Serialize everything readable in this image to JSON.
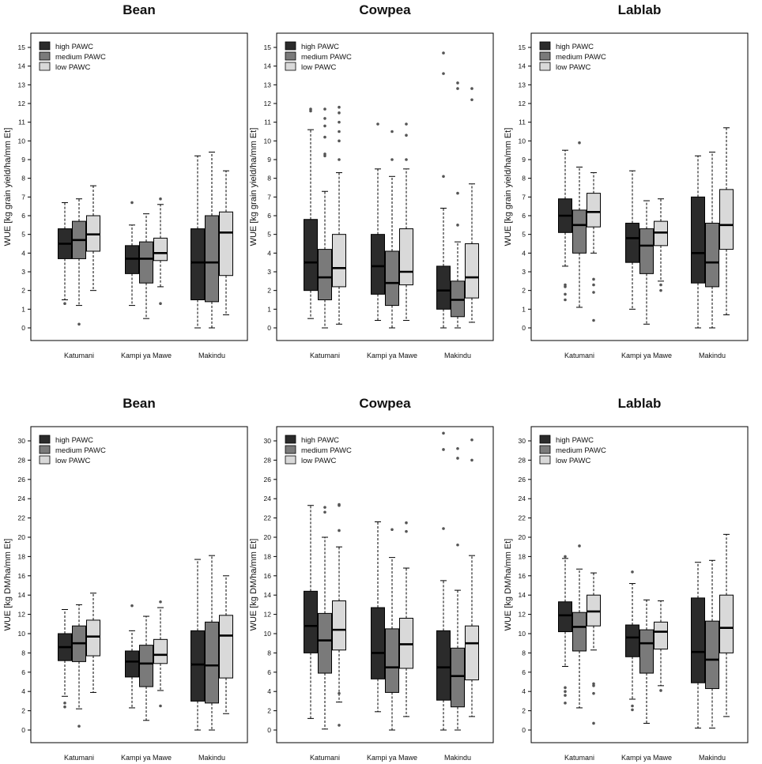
{
  "colors": {
    "high": "#2b2b2b",
    "medium": "#7a7a7a",
    "low": "#d9d9d9",
    "median": "#000000",
    "outlier": "#555555"
  },
  "chart_data": [
    {
      "type": "boxplot",
      "title": "Bean",
      "ylabel": "WUE [kg grain yield/ha/mm Et]",
      "ylim": [
        0,
        15
      ],
      "yticks": [
        0,
        1,
        2,
        3,
        4,
        5,
        6,
        7,
        8,
        9,
        10,
        11,
        12,
        13,
        14,
        15
      ],
      "categories": [
        "Katumani",
        "Kampi ya Mawe",
        "Makindu"
      ],
      "legend": [
        "high PAWC",
        "medium PAWC",
        "low PAWC"
      ],
      "boxes": [
        [
          {
            "q1": 3.7,
            "median": 4.5,
            "q3": 5.3,
            "lo": 1.5,
            "hi": 6.7,
            "out": [
              1.3
            ]
          },
          {
            "q1": 3.7,
            "median": 4.7,
            "q3": 5.7,
            "lo": 1.2,
            "hi": 6.9,
            "out": [
              0.2
            ]
          },
          {
            "q1": 4.1,
            "median": 5.0,
            "q3": 6.0,
            "lo": 2.0,
            "hi": 7.6,
            "out": []
          }
        ],
        [
          {
            "q1": 2.9,
            "median": 3.7,
            "q3": 4.4,
            "lo": 1.2,
            "hi": 5.5,
            "out": [
              6.7
            ]
          },
          {
            "q1": 2.4,
            "median": 3.7,
            "q3": 4.6,
            "lo": 0.5,
            "hi": 6.1,
            "out": []
          },
          {
            "q1": 3.6,
            "median": 4.0,
            "q3": 4.8,
            "lo": 2.2,
            "hi": 6.6,
            "out": [
              1.3,
              6.9
            ]
          }
        ],
        [
          {
            "q1": 1.5,
            "median": 3.5,
            "q3": 5.3,
            "lo": 0.0,
            "hi": 9.2,
            "out": []
          },
          {
            "q1": 1.4,
            "median": 3.5,
            "q3": 6.0,
            "lo": 0.0,
            "hi": 9.4,
            "out": []
          },
          {
            "q1": 2.8,
            "median": 5.1,
            "q3": 6.2,
            "lo": 0.7,
            "hi": 8.4,
            "out": []
          }
        ]
      ]
    },
    {
      "type": "boxplot",
      "title": "Cowpea",
      "ylabel": "WUE [kg grain yield/ha/mm Et]",
      "ylim": [
        0,
        15
      ],
      "yticks": [
        0,
        1,
        2,
        3,
        4,
        5,
        6,
        7,
        8,
        9,
        10,
        11,
        12,
        13,
        14,
        15
      ],
      "categories": [
        "Katumani",
        "Kampi ya Mawe",
        "Makindu"
      ],
      "legend": [
        "high PAWC",
        "medium PAWC",
        "low PAWC"
      ],
      "boxes": [
        [
          {
            "q1": 2.0,
            "median": 3.5,
            "q3": 5.8,
            "lo": 0.5,
            "hi": 10.6,
            "out": [
              11.6,
              11.7
            ]
          },
          {
            "q1": 1.5,
            "median": 2.7,
            "q3": 4.2,
            "lo": 0.0,
            "hi": 7.3,
            "out": [
              9.2,
              9.3,
              10.2,
              10.8,
              11.2,
              11.7
            ]
          },
          {
            "q1": 2.2,
            "median": 3.2,
            "q3": 5.0,
            "lo": 0.2,
            "hi": 8.3,
            "out": [
              9.0,
              10.0,
              10.5,
              11.0,
              11.5,
              11.8
            ]
          }
        ],
        [
          {
            "q1": 1.8,
            "median": 3.3,
            "q3": 5.0,
            "lo": 0.4,
            "hi": 8.5,
            "out": [
              10.9
            ]
          },
          {
            "q1": 1.2,
            "median": 2.4,
            "q3": 4.1,
            "lo": 0.0,
            "hi": 8.1,
            "out": [
              9.0,
              10.5
            ]
          },
          {
            "q1": 2.3,
            "median": 3.0,
            "q3": 5.3,
            "lo": 0.4,
            "hi": 8.5,
            "out": [
              9.0,
              10.3,
              10.9
            ]
          }
        ],
        [
          {
            "q1": 1.0,
            "median": 2.0,
            "q3": 3.3,
            "lo": 0.0,
            "hi": 6.4,
            "out": [
              8.1,
              13.6,
              14.7
            ]
          },
          {
            "q1": 0.6,
            "median": 1.5,
            "q3": 2.5,
            "lo": 0.0,
            "hi": 4.6,
            "out": [
              5.5,
              7.2,
              12.8,
              13.1
            ]
          },
          {
            "q1": 1.6,
            "median": 2.7,
            "q3": 4.5,
            "lo": 0.3,
            "hi": 7.7,
            "out": [
              12.2,
              12.8
            ]
          }
        ]
      ]
    },
    {
      "type": "boxplot",
      "title": "Lablab",
      "ylabel": "WUE [kg grain yield/ha/mm Et]",
      "ylim": [
        0,
        15
      ],
      "yticks": [
        0,
        1,
        2,
        3,
        4,
        5,
        6,
        7,
        8,
        9,
        10,
        11,
        12,
        13,
        14,
        15
      ],
      "categories": [
        "Katumani",
        "Kampi ya Mawe",
        "Makindu"
      ],
      "legend": [
        "high PAWC",
        "medium PAWC",
        "low PAWC"
      ],
      "boxes": [
        [
          {
            "q1": 5.1,
            "median": 6.0,
            "q3": 6.9,
            "lo": 3.3,
            "hi": 9.5,
            "out": [
              1.5,
              1.8,
              2.2,
              2.3
            ]
          },
          {
            "q1": 4.0,
            "median": 5.5,
            "q3": 6.3,
            "lo": 1.1,
            "hi": 8.6,
            "out": [
              9.9
            ]
          },
          {
            "q1": 5.4,
            "median": 6.2,
            "q3": 7.2,
            "lo": 4.0,
            "hi": 8.3,
            "out": [
              0.4,
              1.9,
              2.3,
              2.6
            ]
          }
        ],
        [
          {
            "q1": 3.5,
            "median": 4.8,
            "q3": 5.6,
            "lo": 1.0,
            "hi": 8.4,
            "out": []
          },
          {
            "q1": 2.9,
            "median": 4.4,
            "q3": 5.3,
            "lo": 0.2,
            "hi": 6.8,
            "out": []
          },
          {
            "q1": 4.4,
            "median": 5.1,
            "q3": 5.7,
            "lo": 2.5,
            "hi": 6.9,
            "out": [
              2.0,
              2.3
            ]
          }
        ],
        [
          {
            "q1": 2.4,
            "median": 4.0,
            "q3": 7.0,
            "lo": 0.0,
            "hi": 9.2,
            "out": []
          },
          {
            "q1": 2.2,
            "median": 3.5,
            "q3": 5.6,
            "lo": 0.0,
            "hi": 9.4,
            "out": []
          },
          {
            "q1": 4.2,
            "median": 5.5,
            "q3": 7.4,
            "lo": 0.7,
            "hi": 10.7,
            "out": []
          }
        ]
      ]
    },
    {
      "type": "boxplot",
      "title": "Bean",
      "ylabel": "WUE [kg DM/ha/mm Et]",
      "ylim": [
        0,
        30
      ],
      "yticks": [
        0,
        2,
        4,
        6,
        8,
        10,
        12,
        14,
        16,
        18,
        20,
        22,
        24,
        26,
        28,
        30
      ],
      "categories": [
        "Katumani",
        "Kampi ya Mawe",
        "Makindu"
      ],
      "legend": [
        "high PAWC",
        "medium PAWC",
        "low PAWC"
      ],
      "boxes": [
        [
          {
            "q1": 7.2,
            "median": 8.6,
            "q3": 10.0,
            "lo": 3.5,
            "hi": 12.5,
            "out": [
              2.4,
              2.8
            ]
          },
          {
            "q1": 7.1,
            "median": 9.0,
            "q3": 10.8,
            "lo": 2.2,
            "hi": 13.0,
            "out": [
              0.4
            ]
          },
          {
            "q1": 7.7,
            "median": 9.7,
            "q3": 11.4,
            "lo": 3.9,
            "hi": 14.2,
            "out": []
          }
        ],
        [
          {
            "q1": 5.5,
            "median": 7.1,
            "q3": 8.2,
            "lo": 2.3,
            "hi": 10.3,
            "out": [
              12.9
            ]
          },
          {
            "q1": 4.5,
            "median": 6.9,
            "q3": 8.8,
            "lo": 1.0,
            "hi": 11.8,
            "out": []
          },
          {
            "q1": 6.9,
            "median": 7.8,
            "q3": 9.4,
            "lo": 4.1,
            "hi": 12.7,
            "out": [
              2.5,
              13.3
            ]
          }
        ],
        [
          {
            "q1": 3.0,
            "median": 6.8,
            "q3": 10.3,
            "lo": 0.0,
            "hi": 17.7,
            "out": []
          },
          {
            "q1": 2.8,
            "median": 6.7,
            "q3": 11.2,
            "lo": 0.0,
            "hi": 18.1,
            "out": []
          },
          {
            "q1": 5.4,
            "median": 9.8,
            "q3": 11.9,
            "lo": 1.7,
            "hi": 16.0,
            "out": []
          }
        ]
      ]
    },
    {
      "type": "boxplot",
      "title": "Cowpea",
      "ylabel": "WUE [kg DM/ha/mm Et]",
      "ylim": [
        0,
        30
      ],
      "yticks": [
        0,
        2,
        4,
        6,
        8,
        10,
        12,
        14,
        16,
        18,
        20,
        22,
        24,
        26,
        28,
        30
      ],
      "categories": [
        "Katumani",
        "Kampi ya Mawe",
        "Makindu"
      ],
      "legend": [
        "high PAWC",
        "medium PAWC",
        "low PAWC"
      ],
      "boxes": [
        [
          {
            "q1": 8.0,
            "median": 10.8,
            "q3": 14.4,
            "lo": 1.2,
            "hi": 23.3,
            "out": []
          },
          {
            "q1": 5.9,
            "median": 9.3,
            "q3": 12.1,
            "lo": 0.1,
            "hi": 20.0,
            "out": [
              22.6,
              23.1
            ]
          },
          {
            "q1": 8.3,
            "median": 10.4,
            "q3": 13.4,
            "lo": 2.9,
            "hi": 19.0,
            "out": [
              0.5,
              3.8,
              20.7,
              23.3,
              23.4
            ]
          }
        ],
        [
          {
            "q1": 5.3,
            "median": 8.0,
            "q3": 12.7,
            "lo": 1.9,
            "hi": 21.6,
            "out": []
          },
          {
            "q1": 3.9,
            "median": 6.5,
            "q3": 10.5,
            "lo": 0.0,
            "hi": 17.9,
            "out": [
              20.8
            ]
          },
          {
            "q1": 6.4,
            "median": 8.9,
            "q3": 11.6,
            "lo": 1.4,
            "hi": 16.8,
            "out": [
              20.6,
              21.5
            ]
          }
        ],
        [
          {
            "q1": 3.1,
            "median": 6.5,
            "q3": 10.3,
            "lo": 0.0,
            "hi": 15.5,
            "out": [
              20.9,
              29.1,
              30.8
            ]
          },
          {
            "q1": 2.4,
            "median": 5.6,
            "q3": 8.5,
            "lo": 0.0,
            "hi": 14.5,
            "out": [
              19.2,
              28.2,
              29.2
            ]
          },
          {
            "q1": 5.2,
            "median": 9.0,
            "q3": 10.8,
            "lo": 1.4,
            "hi": 18.1,
            "out": [
              28.0,
              30.1
            ]
          }
        ]
      ]
    },
    {
      "type": "boxplot",
      "title": "Lablab",
      "ylabel": "WUE [kg DM/ha/mm Et]",
      "ylim": [
        0,
        30
      ],
      "yticks": [
        0,
        2,
        4,
        6,
        8,
        10,
        12,
        14,
        16,
        18,
        20,
        22,
        24,
        26,
        28,
        30
      ],
      "categories": [
        "Katumani",
        "Kampi ya Mawe",
        "Makindu"
      ],
      "legend": [
        "high PAWC",
        "medium PAWC",
        "low PAWC"
      ],
      "boxes": [
        [
          {
            "q1": 10.2,
            "median": 11.9,
            "q3": 13.3,
            "lo": 6.6,
            "hi": 17.8,
            "out": [
              2.8,
              3.6,
              4.0,
              4.4,
              18.0
            ]
          },
          {
            "q1": 8.2,
            "median": 10.7,
            "q3": 12.2,
            "lo": 2.3,
            "hi": 16.7,
            "out": [
              19.1
            ]
          },
          {
            "q1": 10.8,
            "median": 12.3,
            "q3": 14.0,
            "lo": 8.3,
            "hi": 16.3,
            "out": [
              0.7,
              3.8,
              4.6,
              4.8
            ]
          }
        ],
        [
          {
            "q1": 7.6,
            "median": 9.6,
            "q3": 10.9,
            "lo": 3.2,
            "hi": 15.2,
            "out": [
              2.1,
              2.5,
              16.4
            ]
          },
          {
            "q1": 5.9,
            "median": 9.0,
            "q3": 10.4,
            "lo": 0.7,
            "hi": 13.5,
            "out": []
          },
          {
            "q1": 8.4,
            "median": 10.2,
            "q3": 11.2,
            "lo": 4.6,
            "hi": 13.4,
            "out": [
              4.1
            ]
          }
        ],
        [
          {
            "q1": 4.9,
            "median": 8.1,
            "q3": 13.7,
            "lo": 0.2,
            "hi": 17.4,
            "out": []
          },
          {
            "q1": 4.3,
            "median": 7.3,
            "q3": 11.3,
            "lo": 0.2,
            "hi": 17.6,
            "out": []
          },
          {
            "q1": 8.0,
            "median": 10.6,
            "q3": 14.0,
            "lo": 1.4,
            "hi": 20.3,
            "out": []
          }
        ]
      ]
    }
  ]
}
